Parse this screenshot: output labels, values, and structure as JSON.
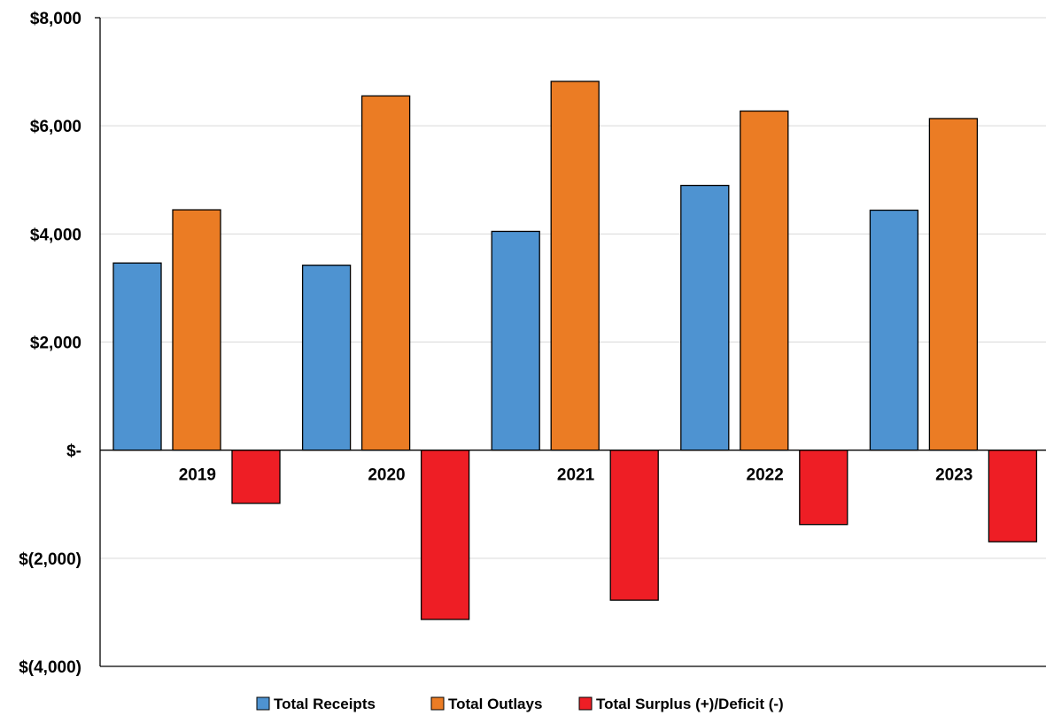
{
  "chart_data": {
    "type": "bar",
    "categories": [
      "2019",
      "2020",
      "2021",
      "2022",
      "2023"
    ],
    "series": [
      {
        "name": "Total Receipts",
        "color": "#4E93D1",
        "values": [
          3462,
          3421,
          4047,
          4897,
          4439
        ]
      },
      {
        "name": "Total Outlays",
        "color": "#EB7C24",
        "values": [
          4446,
          6553,
          6822,
          6273,
          6134
        ]
      },
      {
        "name": "Total Surplus (+)/Deficit (-)",
        "color": "#EE1E25",
        "values": [
          -984,
          -3132,
          -2775,
          -1376,
          -1695
        ]
      }
    ],
    "ylim": [
      -4000,
      8000
    ],
    "yticks": [
      -4000,
      -2000,
      0,
      2000,
      4000,
      6000,
      8000
    ],
    "ytick_labels": [
      "$(4,000)",
      "$(2,000)",
      "$-",
      "$2,000",
      "$4,000",
      "$6,000",
      "$8,000"
    ],
    "grid": true,
    "legend_position": "bottom"
  }
}
